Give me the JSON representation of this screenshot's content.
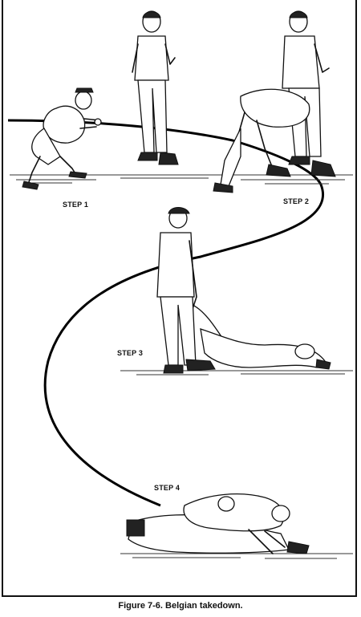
{
  "illustration": {
    "steps": [
      {
        "id": "step1",
        "label": "STEP 1"
      },
      {
        "id": "step2",
        "label": "STEP 2"
      },
      {
        "id": "step3",
        "label": "STEP 3"
      },
      {
        "id": "step4",
        "label": "STEP 4"
      }
    ]
  },
  "caption": "Figure 7-6.  Belgian takedown."
}
